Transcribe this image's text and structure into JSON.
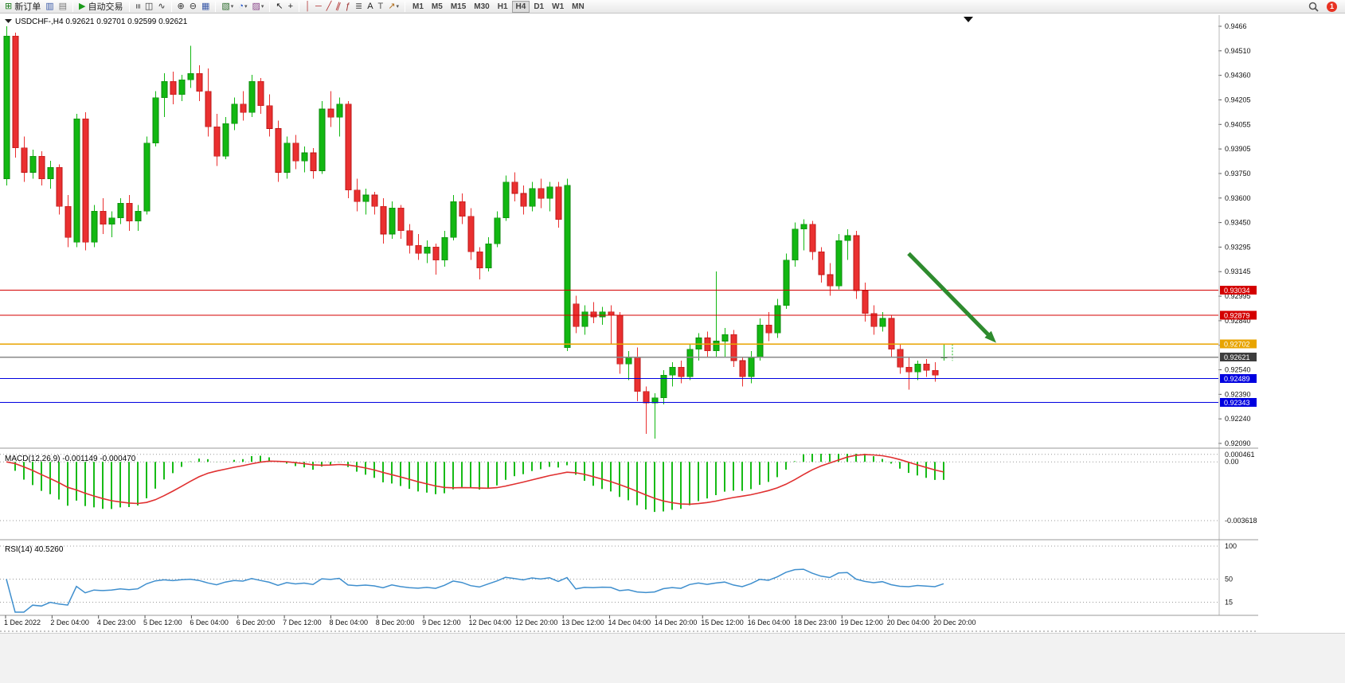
{
  "toolbar": {
    "groups": [
      {
        "items": [
          {
            "name": "new-order-button",
            "icon": "new-order-icon",
            "label": "新订单"
          },
          {
            "name": "chart-window-button",
            "icon": "chart-window-icon"
          },
          {
            "name": "profiles-button",
            "icon": "profiles-icon"
          }
        ]
      },
      {
        "items": [
          {
            "name": "autotrading-button",
            "icon": "autotrading-icon",
            "label": "自动交易"
          }
        ]
      },
      {
        "items": [
          {
            "name": "bar-chart-button",
            "icon": "bar-chart-icon"
          },
          {
            "name": "candlestick-chart-button",
            "icon": "candlestick-chart-icon"
          },
          {
            "name": "line-chart-button",
            "icon": "line-chart-icon"
          }
        ]
      },
      {
        "items": [
          {
            "name": "zoom-in-button",
            "icon": "zoom-in-icon"
          },
          {
            "name": "zoom-out-button",
            "icon": "zoom-out-icon"
          },
          {
            "name": "tile-windows-button",
            "icon": "tile-windows-icon"
          }
        ]
      },
      {
        "items": [
          {
            "name": "new-chart-button",
            "icon": "new-chart-icon",
            "caret": true
          },
          {
            "name": "period-button",
            "icon": "period-clock-icon",
            "caret": true
          },
          {
            "name": "templates-button",
            "icon": "templates-icon",
            "caret": true
          }
        ]
      },
      {
        "items": [
          {
            "name": "cursor-button",
            "icon": "cursor-icon"
          },
          {
            "name": "crosshair-button",
            "icon": "crosshair-icon"
          }
        ]
      },
      {
        "items": [
          {
            "name": "vertical-line-button",
            "icon": "vertical-line-icon"
          },
          {
            "name": "horizontal-line-button",
            "icon": "horizontal-line-icon"
          },
          {
            "name": "trendline-button",
            "icon": "trendline-icon"
          },
          {
            "name": "channel-button",
            "icon": "channel-icon"
          },
          {
            "name": "fibonacci-button",
            "icon": "fibonacci-icon"
          },
          {
            "name": "grid-button",
            "icon": "grid-icon"
          },
          {
            "name": "text-label-button",
            "icon": "text-label-icon"
          },
          {
            "name": "text-box-button",
            "icon": "text-box-icon"
          },
          {
            "name": "arrows-button",
            "icon": "arrows-icon",
            "caret": true
          }
        ]
      }
    ],
    "timeframes": [
      "M1",
      "M5",
      "M15",
      "M30",
      "H1",
      "H4",
      "D1",
      "W1",
      "MN"
    ],
    "active_timeframe": "H4",
    "right": {
      "badge": "1"
    }
  },
  "chart": {
    "header": {
      "symbol": "USDCHF-",
      "timeframe": "H4",
      "open": "0.92621",
      "high": "0.92701",
      "low": "0.92599",
      "close": "0.92621"
    }
  },
  "chart_data": {
    "type": "candlestick",
    "symbol": "USDCHF-",
    "timeframe": "H4",
    "price_max": 0.9466,
    "price_min": 0.9209,
    "price_axis": [
      "0.9466",
      "0.94510",
      "0.94360",
      "0.94205",
      "0.94055",
      "0.93905",
      "0.93750",
      "0.93600",
      "0.93450",
      "0.93295",
      "0.93145",
      "0.92995",
      "0.92840",
      "0.92690",
      "0.92540",
      "0.92390",
      "0.92240",
      "0.92090"
    ],
    "time_axis": [
      "1 Dec 2022",
      "2 Dec 04:00",
      "4 Dec 23:00",
      "5 Dec 12:00",
      "6 Dec 04:00",
      "6 Dec 20:00",
      "7 Dec 12:00",
      "8 Dec 04:00",
      "8 Dec 20:00",
      "9 Dec 12:00",
      "12 Dec 04:00",
      "12 Dec 20:00",
      "13 Dec 12:00",
      "14 Dec 04:00",
      "14 Dec 20:00",
      "15 Dec 12:00",
      "16 Dec 04:00",
      "18 Dec 23:00",
      "19 Dec 12:00",
      "20 Dec 04:00",
      "20 Dec 20:00"
    ],
    "colors": {
      "up": "#12b812",
      "down": "#ea3030",
      "up_border": "#0b860b",
      "down_border": "#bb1414"
    },
    "candles": [
      [
        0.9372,
        0.9466,
        0.9368,
        0.946
      ],
      [
        0.946,
        0.9462,
        0.9385,
        0.9391
      ],
      [
        0.9391,
        0.9398,
        0.937,
        0.9376
      ],
      [
        0.9376,
        0.939,
        0.9372,
        0.9386
      ],
      [
        0.9386,
        0.9389,
        0.9368,
        0.9372
      ],
      [
        0.9372,
        0.9383,
        0.9366,
        0.9379
      ],
      [
        0.9379,
        0.9381,
        0.935,
        0.9355
      ],
      [
        0.9355,
        0.9362,
        0.933,
        0.9336
      ],
      [
        0.9333,
        0.9412,
        0.933,
        0.9409
      ],
      [
        0.9409,
        0.9413,
        0.9328,
        0.9333
      ],
      [
        0.9333,
        0.9356,
        0.933,
        0.9352
      ],
      [
        0.9352,
        0.936,
        0.9338,
        0.9344
      ],
      [
        0.9344,
        0.9352,
        0.9336,
        0.9348
      ],
      [
        0.9348,
        0.936,
        0.9344,
        0.9357
      ],
      [
        0.9357,
        0.9362,
        0.934,
        0.9346
      ],
      [
        0.9346,
        0.9356,
        0.934,
        0.9352
      ],
      [
        0.9352,
        0.9398,
        0.935,
        0.9394
      ],
      [
        0.9394,
        0.9426,
        0.9392,
        0.9422
      ],
      [
        0.9422,
        0.9437,
        0.941,
        0.9432
      ],
      [
        0.9432,
        0.9438,
        0.9418,
        0.9424
      ],
      [
        0.9424,
        0.9436,
        0.942,
        0.9433
      ],
      [
        0.9433,
        0.9454,
        0.9428,
        0.9437
      ],
      [
        0.9437,
        0.9442,
        0.942,
        0.9426
      ],
      [
        0.9426,
        0.944,
        0.9398,
        0.9404
      ],
      [
        0.9404,
        0.9412,
        0.938,
        0.9386
      ],
      [
        0.9386,
        0.941,
        0.9384,
        0.9406
      ],
      [
        0.9406,
        0.9422,
        0.9402,
        0.9418
      ],
      [
        0.9418,
        0.9426,
        0.9408,
        0.9413
      ],
      [
        0.9413,
        0.9436,
        0.941,
        0.9432
      ],
      [
        0.9432,
        0.9434,
        0.9412,
        0.9417
      ],
      [
        0.9417,
        0.9424,
        0.9398,
        0.9403
      ],
      [
        0.9403,
        0.9408,
        0.937,
        0.9376
      ],
      [
        0.9376,
        0.9398,
        0.9372,
        0.9394
      ],
      [
        0.9394,
        0.9399,
        0.9378,
        0.9383
      ],
      [
        0.9383,
        0.9392,
        0.9376,
        0.9388
      ],
      [
        0.9388,
        0.9391,
        0.9372,
        0.9377
      ],
      [
        0.9377,
        0.942,
        0.9375,
        0.9415
      ],
      [
        0.9415,
        0.9426,
        0.9404,
        0.941
      ],
      [
        0.941,
        0.9422,
        0.9398,
        0.9418
      ],
      [
        0.9418,
        0.942,
        0.936,
        0.9365
      ],
      [
        0.9365,
        0.9372,
        0.9352,
        0.9358
      ],
      [
        0.9358,
        0.9366,
        0.935,
        0.9362
      ],
      [
        0.9362,
        0.9364,
        0.935,
        0.9355
      ],
      [
        0.9355,
        0.936,
        0.9332,
        0.9338
      ],
      [
        0.9338,
        0.9358,
        0.9335,
        0.9354
      ],
      [
        0.9354,
        0.9356,
        0.9335,
        0.934
      ],
      [
        0.934,
        0.9344,
        0.9326,
        0.9331
      ],
      [
        0.9331,
        0.9338,
        0.9322,
        0.9326
      ],
      [
        0.9326,
        0.9334,
        0.932,
        0.933
      ],
      [
        0.933,
        0.9332,
        0.9313,
        0.9322
      ],
      [
        0.9322,
        0.934,
        0.9318,
        0.9336
      ],
      [
        0.9336,
        0.9362,
        0.9334,
        0.9358
      ],
      [
        0.9358,
        0.9363,
        0.9344,
        0.9349
      ],
      [
        0.9349,
        0.9354,
        0.9322,
        0.9327
      ],
      [
        0.9327,
        0.933,
        0.931,
        0.9317
      ],
      [
        0.9317,
        0.9336,
        0.9315,
        0.9332
      ],
      [
        0.9332,
        0.9352,
        0.933,
        0.9348
      ],
      [
        0.9348,
        0.9374,
        0.9346,
        0.937
      ],
      [
        0.937,
        0.9376,
        0.9358,
        0.9363
      ],
      [
        0.9363,
        0.9368,
        0.935,
        0.9355
      ],
      [
        0.9355,
        0.937,
        0.9352,
        0.9366
      ],
      [
        0.9366,
        0.9372,
        0.9354,
        0.936
      ],
      [
        0.936,
        0.937,
        0.9352,
        0.9367
      ],
      [
        0.9367,
        0.937,
        0.9342,
        0.9347
      ],
      [
        0.9268,
        0.9372,
        0.9266,
        0.9368
      ],
      [
        0.9295,
        0.93,
        0.9277,
        0.9281
      ],
      [
        0.9281,
        0.9294,
        0.9276,
        0.929
      ],
      [
        0.929,
        0.9296,
        0.9283,
        0.9287
      ],
      [
        0.9287,
        0.9293,
        0.9282,
        0.929
      ],
      [
        0.929,
        0.9294,
        0.927,
        0.9288
      ],
      [
        0.9288,
        0.929,
        0.9252,
        0.9258
      ],
      [
        0.9258,
        0.9266,
        0.9248,
        0.9262
      ],
      [
        0.9262,
        0.9268,
        0.9235,
        0.9241
      ],
      [
        0.9241,
        0.9244,
        0.9215,
        0.9234
      ],
      [
        0.9234,
        0.924,
        0.9212,
        0.9237
      ],
      [
        0.9237,
        0.9254,
        0.9233,
        0.9251
      ],
      [
        0.9251,
        0.9259,
        0.9244,
        0.9256
      ],
      [
        0.9256,
        0.926,
        0.9246,
        0.925
      ],
      [
        0.925,
        0.927,
        0.9248,
        0.9267
      ],
      [
        0.9267,
        0.9277,
        0.926,
        0.9274
      ],
      [
        0.9274,
        0.9278,
        0.9262,
        0.9266
      ],
      [
        0.9266,
        0.9315,
        0.9262,
        0.9272
      ],
      [
        0.9272,
        0.928,
        0.9262,
        0.9276
      ],
      [
        0.9276,
        0.9279,
        0.9256,
        0.926
      ],
      [
        0.926,
        0.9262,
        0.9244,
        0.925
      ],
      [
        0.925,
        0.9266,
        0.9246,
        0.9262
      ],
      [
        0.9262,
        0.9286,
        0.926,
        0.9282
      ],
      [
        0.9282,
        0.929,
        0.9272,
        0.9277
      ],
      [
        0.9277,
        0.9298,
        0.9274,
        0.9294
      ],
      [
        0.9294,
        0.9326,
        0.9292,
        0.9322
      ],
      [
        0.9322,
        0.9345,
        0.9318,
        0.9341
      ],
      [
        0.9341,
        0.9347,
        0.9328,
        0.9344
      ],
      [
        0.9344,
        0.9346,
        0.9322,
        0.9327
      ],
      [
        0.9327,
        0.933,
        0.9308,
        0.9313
      ],
      [
        0.9313,
        0.932,
        0.93,
        0.9306
      ],
      [
        0.9306,
        0.9338,
        0.9304,
        0.9334
      ],
      [
        0.9334,
        0.9341,
        0.9322,
        0.9337
      ],
      [
        0.9337,
        0.934,
        0.9298,
        0.9303
      ],
      [
        0.9303,
        0.9308,
        0.9284,
        0.9289
      ],
      [
        0.9289,
        0.9294,
        0.9276,
        0.9281
      ],
      [
        0.9281,
        0.929,
        0.9278,
        0.9286
      ],
      [
        0.9286,
        0.9288,
        0.9262,
        0.9267
      ],
      [
        0.9267,
        0.927,
        0.9252,
        0.9256
      ],
      [
        0.9256,
        0.9262,
        0.9242,
        0.9253
      ],
      [
        0.9253,
        0.926,
        0.9248,
        0.9258
      ],
      [
        0.9258,
        0.9261,
        0.925,
        0.9254
      ],
      [
        0.9254,
        0.9259,
        0.9247,
        0.9251
      ],
      [
        0.92621,
        0.92701,
        0.92599,
        0.92621
      ]
    ],
    "levels": [
      {
        "name": "resistance-line-1",
        "label": "0.93034",
        "value": 0.93034,
        "color": "#d40000"
      },
      {
        "name": "resistance-line-2",
        "label": "0.92879",
        "value": 0.92879,
        "color": "#d40000"
      },
      {
        "name": "pivot-line",
        "label": "0.92702",
        "value": 0.92702,
        "color": "#e8a400"
      },
      {
        "name": "current-price-line",
        "label": "0.92621",
        "value": 0.92621,
        "color": "#8a8a8a",
        "box": "#3d3d3d"
      },
      {
        "name": "support-line-1",
        "label": "0.92489",
        "value": 0.92489,
        "color": "#0000e0"
      },
      {
        "name": "support-line-2",
        "label": "0.92343",
        "value": 0.92343,
        "color": "#0000e0"
      }
    ],
    "arrow": {
      "name": "down-arrow-annotation",
      "color": "#2e8b2e",
      "from_index": 103,
      "from_price": 0.9326,
      "to_index": 113,
      "to_price": 0.9271
    },
    "macd": {
      "label": "MACD(12,26,9)",
      "value_main": "-0.001149",
      "value_signal": "-0.000470",
      "histogram_color": "#17bb17",
      "signal_color": "#e03030",
      "scale": [
        {
          "label": "0.000461",
          "value": 0.000461
        },
        {
          "label": "0.00",
          "value": 0
        },
        {
          "label": "-0.003618",
          "value": -0.003618
        }
      ]
    },
    "rsi": {
      "label": "RSI(14)",
      "value": "40.5260",
      "line_color": "#3f8fce",
      "scale": [
        {
          "label": "100",
          "value": 100
        },
        {
          "label": "50",
          "value": 50
        },
        {
          "label": "15",
          "value": 15
        }
      ]
    }
  }
}
